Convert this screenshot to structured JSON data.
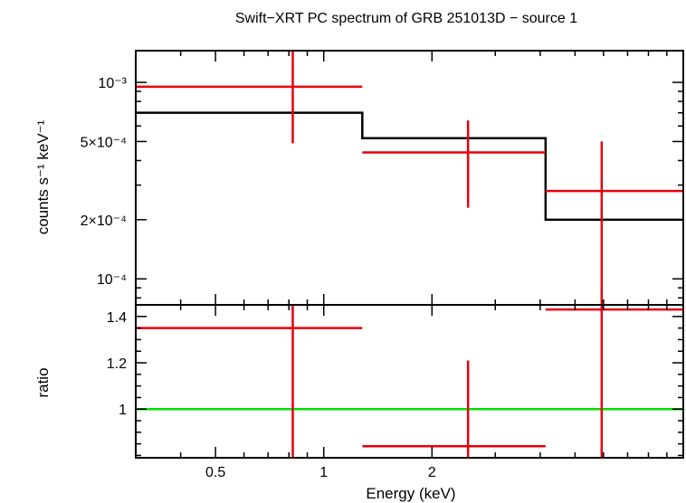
{
  "chart_data": {
    "type": "spectrum",
    "title": "Swift−XRT PC spectrum of GRB 251013D − source 1",
    "xlabel": "Energy (keV)",
    "x_scale": "log",
    "xlim": [
      0.3,
      10
    ],
    "x_ticks": [
      {
        "value": 0.5,
        "label": "0.5"
      },
      {
        "value": 1,
        "label": "1"
      },
      {
        "value": 2,
        "label": "2"
      }
    ],
    "top_panel": {
      "ylabel": "counts s⁻¹ keV⁻¹",
      "y_scale": "log",
      "ylim": [
        7.37e-05,
        0.00145
      ],
      "y_ticks": [
        {
          "value": 0.001,
          "label": "10⁻³"
        },
        {
          "value": 0.0005,
          "label": "5×10⁻⁴"
        },
        {
          "value": 0.0002,
          "label": "2×10⁻⁴"
        },
        {
          "value": 0.0001,
          "label": "10⁻⁴"
        }
      ],
      "data": [
        {
          "x_lo": 0.3,
          "x_hi": 1.28,
          "x": 0.82,
          "y": 0.00095,
          "y_lo": 0.00049,
          "y_hi": 0.00148
        },
        {
          "x_lo": 1.28,
          "x_hi": 4.14,
          "x": 2.52,
          "y": 0.00044,
          "y_lo": 0.00023,
          "y_hi": 0.00064
        },
        {
          "x_lo": 4.14,
          "x_hi": 10,
          "x": 5.93,
          "y": 0.00028,
          "y_lo": 5e-05,
          "y_hi": 0.0005
        }
      ],
      "model": [
        {
          "x_lo": 0.3,
          "x_hi": 1.28,
          "y": 0.0007
        },
        {
          "x_lo": 1.28,
          "x_hi": 4.14,
          "y": 0.00052
        },
        {
          "x_lo": 4.14,
          "x_hi": 10,
          "y": 0.0002
        }
      ]
    },
    "bottom_panel": {
      "ylabel": "ratio",
      "ylim": [
        0.79,
        1.45
      ],
      "y_ticks": [
        {
          "value": 1.4,
          "label": "1.4"
        },
        {
          "value": 1.2,
          "label": "1.2"
        },
        {
          "value": 1,
          "label": "1"
        }
      ],
      "reference_line": 1,
      "data": [
        {
          "x_lo": 0.3,
          "x_hi": 1.28,
          "x": 0.82,
          "y": 1.35,
          "y_lo": 0.7,
          "y_hi": 1.45
        },
        {
          "x_lo": 1.28,
          "x_hi": 4.14,
          "x": 2.52,
          "y": 0.84,
          "y_lo": 0.7,
          "y_hi": 1.21
        },
        {
          "x_lo": 4.14,
          "x_hi": 10,
          "x": 5.93,
          "y": 1.43,
          "y_lo": 0.7,
          "y_hi": 1.45
        }
      ]
    },
    "colors": {
      "data": "#e8000b",
      "model": "#000000",
      "reference": "#00e000",
      "axes": "#000000"
    }
  }
}
